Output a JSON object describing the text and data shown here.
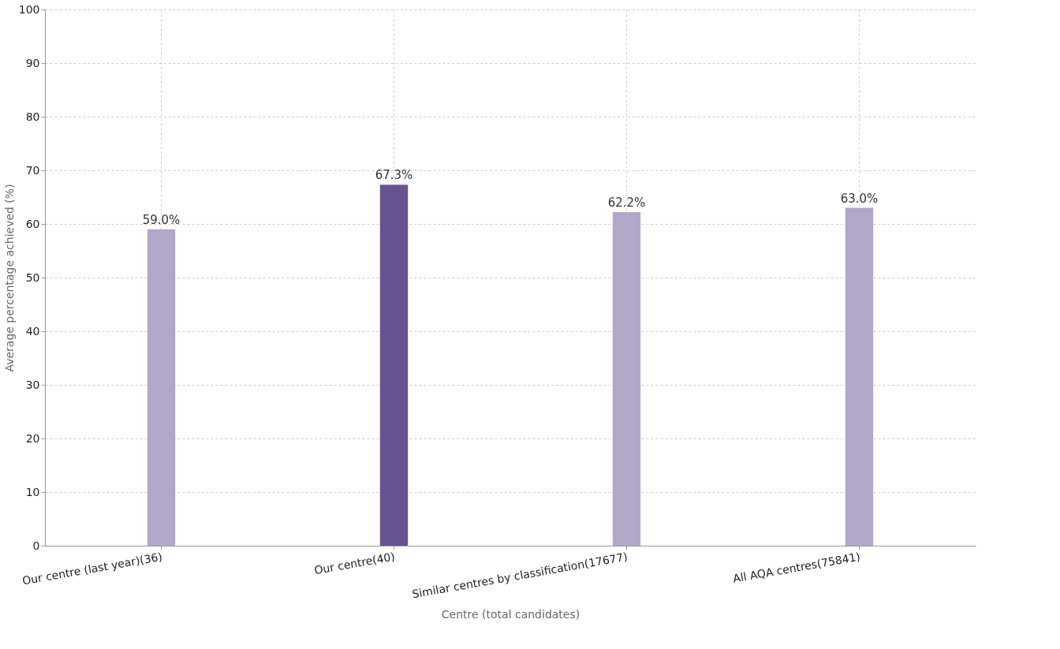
{
  "chart_data": {
    "type": "bar",
    "xlabel": "Centre (total candidates)",
    "ylabel": "Average percentage achieved (%)",
    "categories": [
      "Our centre (last year)(36)",
      "Our centre(40)",
      "Similar centres by classification(17677)",
      "All AQA centres(75841)"
    ],
    "values": [
      59.0,
      67.3,
      62.2,
      63.0
    ],
    "colors": [
      "#b1a8c9",
      "#67538f",
      "#b1a8c9",
      "#b1a8c9"
    ],
    "value_labels": [
      "59.0%",
      "67.3%",
      "62.2%",
      "63.0%"
    ],
    "ylim": [
      0,
      100
    ],
    "yticks": [
      0,
      10,
      20,
      30,
      40,
      50,
      60,
      70,
      80,
      90,
      100
    ],
    "grid": true
  }
}
